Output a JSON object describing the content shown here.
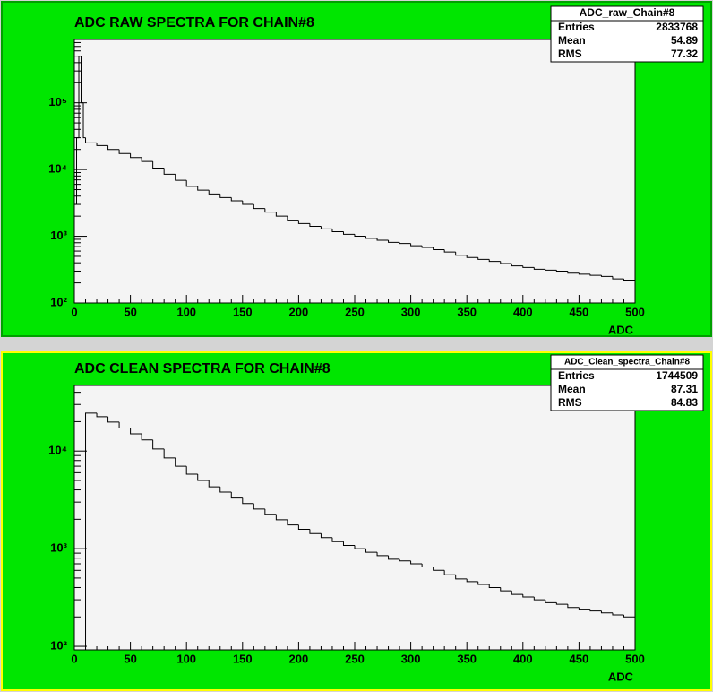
{
  "chart_data": [
    {
      "type": "histogram",
      "title": "ADC RAW SPECTRA FOR CHAIN#8",
      "x_label": "ADC",
      "log_y": true,
      "color": "#000000",
      "background": "#00e600",
      "stats": {
        "title": "ADC_raw_Chain#8",
        "rows": [
          [
            "Entries",
            2833768
          ],
          [
            "Mean",
            54.89
          ],
          [
            "RMS",
            77.32
          ]
        ]
      },
      "xlim": [
        0,
        500
      ],
      "xticks": [
        0,
        50,
        100,
        150,
        200,
        250,
        300,
        350,
        400,
        450,
        500
      ],
      "ylim": [
        100,
        890000
      ],
      "yticks": [
        {
          "value": 100,
          "label": "10²"
        },
        {
          "value": 1000,
          "label": "10³"
        },
        {
          "value": 10000,
          "label": "10⁴"
        },
        {
          "value": 100000,
          "label": "10⁵"
        }
      ],
      "bins": [
        0,
        2,
        4,
        6,
        8,
        10,
        20,
        30,
        40,
        50,
        60,
        70,
        80,
        90,
        100,
        110,
        120,
        130,
        140,
        150,
        160,
        170,
        180,
        190,
        200,
        210,
        220,
        230,
        240,
        250,
        260,
        270,
        280,
        290,
        300,
        310,
        320,
        330,
        340,
        350,
        360,
        370,
        380,
        390,
        400,
        410,
        420,
        430,
        440,
        450,
        460,
        470,
        480,
        490,
        500
      ],
      "values": [
        3000,
        30000,
        500000,
        100000,
        30000,
        25100,
        22900,
        20000,
        17400,
        15100,
        13200,
        10500,
        8500,
        6900,
        5600,
        4900,
        4300,
        3800,
        3400,
        3000,
        2600,
        2300,
        2000,
        1740,
        1550,
        1410,
        1290,
        1170,
        1070,
        1000,
        930,
        870,
        810,
        780,
        720,
        680,
        630,
        580,
        520,
        480,
        450,
        420,
        390,
        360,
        340,
        320,
        310,
        300,
        280,
        270,
        260,
        250,
        230,
        220
      ]
    },
    {
      "type": "histogram",
      "title": "ADC CLEAN SPECTRA FOR CHAIN#8",
      "x_label": "ADC",
      "log_y": true,
      "color": "#000000",
      "background": "#00e600",
      "stats": {
        "title": "ADC_Clean_spectra_Chain#8",
        "rows": [
          [
            "Entries",
            1744509
          ],
          [
            "Mean",
            87.31
          ],
          [
            "RMS",
            84.83
          ]
        ]
      },
      "xlim": [
        0,
        500
      ],
      "xticks": [
        0,
        50,
        100,
        150,
        200,
        250,
        300,
        350,
        400,
        450,
        500
      ],
      "ylim": [
        92,
        47000
      ],
      "yticks": [
        {
          "value": 100,
          "label": "10²"
        },
        {
          "value": 1000,
          "label": "10³"
        },
        {
          "value": 10000,
          "label": "10⁴"
        }
      ],
      "bins": [
        10,
        20,
        30,
        40,
        50,
        60,
        70,
        80,
        90,
        100,
        110,
        120,
        130,
        140,
        150,
        160,
        170,
        180,
        190,
        200,
        210,
        220,
        230,
        240,
        250,
        260,
        270,
        280,
        290,
        300,
        310,
        320,
        330,
        340,
        350,
        360,
        370,
        380,
        390,
        400,
        410,
        420,
        430,
        440,
        450,
        460,
        470,
        480,
        490,
        500
      ],
      "values": [
        24500,
        22500,
        19800,
        17200,
        15000,
        13000,
        10500,
        8500,
        7000,
        5800,
        5000,
        4300,
        3800,
        3300,
        2900,
        2550,
        2250,
        1980,
        1750,
        1580,
        1430,
        1300,
        1180,
        1080,
        1000,
        920,
        850,
        780,
        750,
        700,
        650,
        600,
        540,
        490,
        460,
        430,
        400,
        370,
        340,
        320,
        300,
        280,
        270,
        250,
        240,
        230,
        220,
        210,
        200
      ]
    }
  ]
}
